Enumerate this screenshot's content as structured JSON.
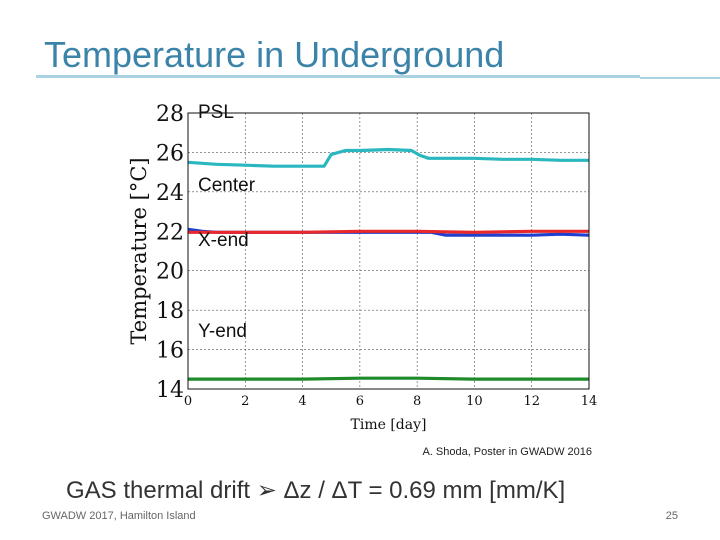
{
  "slide": {
    "title": "Temperature in Underground",
    "citation": "A. Shoda, Poster in GWADW 2016",
    "summary": "GAS thermal drift ➢ Δz / ΔT = 0.69 mm [mm/K]",
    "footer_left": "GWADW 2017, Hamilton Island",
    "page_number": "25"
  },
  "chart_data": {
    "type": "line",
    "xlabel": "Time [day]",
    "ylabel": "Temperature [°C]",
    "xlim": [
      0,
      14
    ],
    "ylim": [
      14,
      28
    ],
    "x_ticks": [
      "0",
      "2",
      "4",
      "6",
      "8",
      "10",
      "12",
      "14"
    ],
    "y_ticks": [
      "14",
      "16",
      "18",
      "20",
      "22",
      "24",
      "26",
      "28"
    ],
    "grid": true,
    "series": [
      {
        "name": "PSL",
        "color": "#2ab7bf",
        "x": [
          0,
          1,
          2,
          3,
          4,
          4.75,
          5.0,
          5.5,
          6,
          7,
          7.8,
          8.1,
          8.4,
          9,
          10,
          11,
          12,
          13,
          14
        ],
        "y": [
          25.5,
          25.4,
          25.35,
          25.3,
          25.3,
          25.3,
          25.9,
          26.1,
          26.1,
          26.15,
          26.1,
          25.85,
          25.7,
          25.7,
          25.7,
          25.65,
          25.65,
          25.6,
          25.6
        ]
      },
      {
        "name": "Center",
        "color": "#1f3fcc",
        "x": [
          0,
          0.5,
          1,
          3,
          5,
          7,
          8.5,
          9,
          10,
          12,
          13,
          14
        ],
        "y": [
          22.1,
          22.0,
          21.95,
          21.95,
          21.95,
          21.95,
          21.95,
          21.8,
          21.8,
          21.8,
          21.85,
          21.8
        ]
      },
      {
        "name": "X-end",
        "color": "#e8282b",
        "x": [
          0,
          1,
          2,
          4,
          6,
          8,
          10,
          12,
          14
        ],
        "y": [
          21.95,
          21.95,
          21.95,
          21.95,
          22.0,
          22.0,
          21.95,
          22.0,
          22.0
        ]
      },
      {
        "name": "Y-end",
        "color": "#1f8a2a",
        "x": [
          0,
          2,
          4,
          6,
          8,
          10,
          12,
          14
        ],
        "y": [
          14.5,
          14.5,
          14.5,
          14.55,
          14.55,
          14.5,
          14.5,
          14.5
        ]
      }
    ]
  }
}
